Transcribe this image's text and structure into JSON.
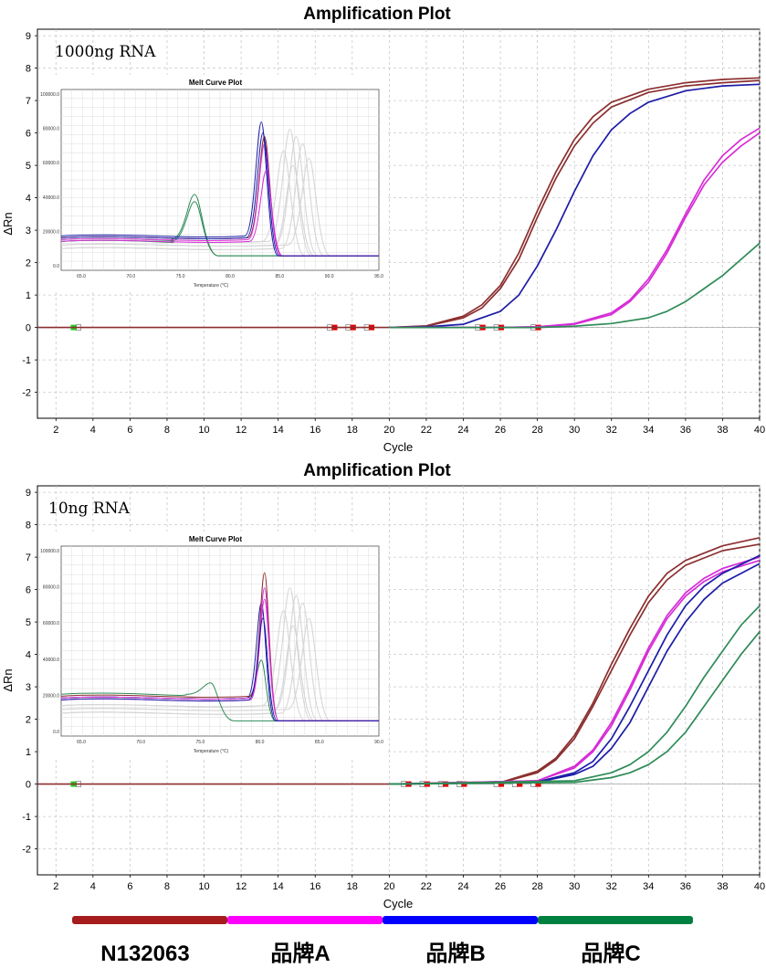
{
  "colors": {
    "n132063": "#8c2f2f",
    "brandA": "#d62dd6",
    "brandB": "#1c1ca8",
    "brandC": "#2e8b57",
    "legend_n132063": "#a61c1c",
    "legend_brandA": "#ff00ff",
    "legend_brandB": "#0000ff",
    "legend_brandC": "#008040"
  },
  "legend": {
    "items": [
      {
        "label": "N132063",
        "color": "#a61c1c"
      },
      {
        "label": "品牌A",
        "color": "#ff00ff"
      },
      {
        "label": "品牌B",
        "color": "#0000ff"
      },
      {
        "label": "品牌C",
        "color": "#008040"
      }
    ]
  },
  "chart_data": [
    {
      "type": "line",
      "title": "Amplification Plot",
      "annotation": "1000ng RNA",
      "xlabel": "Cycle",
      "ylabel": "ΔRn",
      "xlim": [
        1,
        40
      ],
      "ylim": [
        -2.8,
        9.2
      ],
      "xticks": [
        2,
        4,
        6,
        8,
        10,
        12,
        14,
        16,
        18,
        20,
        22,
        24,
        26,
        28,
        30,
        32,
        34,
        36,
        38,
        40
      ],
      "yticks": [
        -2,
        -1,
        0,
        1,
        2,
        3,
        4,
        5,
        6,
        7,
        8,
        9
      ],
      "grid": true,
      "series": [
        {
          "group": "N132063",
          "color": "#8c2f2f",
          "x": [
            20,
            22,
            24,
            25,
            26,
            27,
            28,
            29,
            30,
            31,
            32,
            34,
            36,
            38,
            40
          ],
          "y": [
            0.0,
            0.05,
            0.35,
            0.7,
            1.3,
            2.3,
            3.6,
            4.8,
            5.8,
            6.5,
            6.95,
            7.35,
            7.55,
            7.65,
            7.7
          ]
        },
        {
          "group": "N132063",
          "color": "#8c2f2f",
          "x": [
            20,
            22,
            24,
            25,
            26,
            27,
            28,
            29,
            30,
            31,
            32,
            34,
            36,
            38,
            40
          ],
          "y": [
            0.0,
            0.04,
            0.3,
            0.6,
            1.2,
            2.1,
            3.4,
            4.6,
            5.6,
            6.3,
            6.8,
            7.25,
            7.45,
            7.55,
            7.62
          ]
        },
        {
          "group": "品牌B",
          "color": "#1c1ca8",
          "x": [
            20,
            22,
            24,
            26,
            27,
            28,
            29,
            30,
            31,
            32,
            33,
            34,
            36,
            38,
            40
          ],
          "y": [
            0.0,
            0.02,
            0.1,
            0.5,
            1.0,
            1.9,
            3.0,
            4.2,
            5.3,
            6.1,
            6.6,
            6.95,
            7.3,
            7.45,
            7.5
          ]
        },
        {
          "group": "品牌A",
          "color": "#d62dd6",
          "x": [
            20,
            26,
            28,
            30,
            32,
            33,
            34,
            35,
            36,
            37,
            38,
            39,
            40
          ],
          "y": [
            0.0,
            0.0,
            0.02,
            0.1,
            0.4,
            0.8,
            1.4,
            2.3,
            3.4,
            4.4,
            5.1,
            5.6,
            6.0
          ]
        },
        {
          "group": "品牌A",
          "color": "#d62dd6",
          "x": [
            20,
            26,
            28,
            30,
            32,
            33,
            34,
            35,
            36,
            37,
            38,
            39,
            40
          ],
          "y": [
            0.0,
            0.0,
            0.02,
            0.12,
            0.45,
            0.85,
            1.5,
            2.4,
            3.5,
            4.55,
            5.3,
            5.8,
            6.15
          ]
        },
        {
          "group": "品牌C",
          "color": "#2e8b57",
          "x": [
            20,
            28,
            30,
            32,
            34,
            35,
            36,
            37,
            38,
            39,
            40
          ],
          "y": [
            0.0,
            0.0,
            0.04,
            0.12,
            0.3,
            0.5,
            0.8,
            1.2,
            1.6,
            2.1,
            2.6
          ]
        }
      ],
      "inset": {
        "title": "Melt Curve Plot",
        "xlabel": "Temperature (°C)",
        "xticks": [
          "65.0",
          "70.0",
          "75.0",
          "80.0",
          "85.0",
          "90.0",
          "95.0"
        ],
        "yticks": [
          "100000.0",
          "80000.0",
          "60000.0",
          "40000.0",
          "20000.0",
          "0.0"
        ]
      }
    },
    {
      "type": "line",
      "title": "Amplification Plot",
      "annotation": "10ng RNA",
      "xlabel": "Cycle",
      "ylabel": "ΔRn",
      "xlim": [
        1,
        40
      ],
      "ylim": [
        -2.8,
        9.2
      ],
      "xticks": [
        2,
        4,
        6,
        8,
        10,
        12,
        14,
        16,
        18,
        20,
        22,
        24,
        26,
        28,
        30,
        32,
        34,
        36,
        38,
        40
      ],
      "yticks": [
        -2,
        -1,
        0,
        1,
        2,
        3,
        4,
        5,
        6,
        7,
        8,
        9
      ],
      "grid": true,
      "series": [
        {
          "group": "N132063",
          "color": "#8c2f2f",
          "x": [
            20,
            26,
            28,
            29,
            30,
            31,
            32,
            33,
            34,
            35,
            36,
            38,
            40
          ],
          "y": [
            0.0,
            0.05,
            0.4,
            0.8,
            1.5,
            2.5,
            3.7,
            4.8,
            5.8,
            6.5,
            6.9,
            7.35,
            7.6
          ]
        },
        {
          "group": "N132063",
          "color": "#8c2f2f",
          "x": [
            20,
            26,
            28,
            29,
            30,
            31,
            32,
            33,
            34,
            35,
            36,
            38,
            40
          ],
          "y": [
            0.0,
            0.04,
            0.35,
            0.75,
            1.4,
            2.4,
            3.5,
            4.6,
            5.6,
            6.3,
            6.75,
            7.2,
            7.4
          ]
        },
        {
          "group": "品牌A",
          "color": "#d62dd6",
          "x": [
            20,
            28,
            30,
            31,
            32,
            33,
            34,
            35,
            36,
            37,
            38,
            40
          ],
          "y": [
            0.0,
            0.1,
            0.5,
            1.0,
            1.8,
            2.9,
            4.1,
            5.1,
            5.8,
            6.25,
            6.55,
            6.9
          ]
        },
        {
          "group": "品牌A",
          "color": "#d62dd6",
          "x": [
            20,
            28,
            30,
            31,
            32,
            33,
            34,
            35,
            36,
            37,
            38,
            40
          ],
          "y": [
            0.0,
            0.1,
            0.55,
            1.05,
            1.9,
            3.0,
            4.2,
            5.2,
            5.9,
            6.35,
            6.65,
            7.0
          ]
        },
        {
          "group": "品牌B",
          "color": "#1c1ca8",
          "x": [
            20,
            28,
            30,
            31,
            32,
            33,
            34,
            35,
            36,
            37,
            38,
            40
          ],
          "y": [
            0.0,
            0.06,
            0.3,
            0.55,
            1.1,
            1.9,
            3.0,
            4.1,
            5.0,
            5.7,
            6.2,
            6.8
          ]
        },
        {
          "group": "品牌B",
          "color": "#1c1ca8",
          "x": [
            20,
            28,
            30,
            31,
            32,
            33,
            34,
            35,
            36,
            37,
            38,
            40
          ],
          "y": [
            0.0,
            0.07,
            0.35,
            0.7,
            1.4,
            2.4,
            3.5,
            4.6,
            5.5,
            6.1,
            6.5,
            7.05
          ]
        },
        {
          "group": "品牌C",
          "color": "#2e8b57",
          "x": [
            20,
            30,
            32,
            33,
            34,
            35,
            36,
            37,
            38,
            39,
            40
          ],
          "y": [
            0.0,
            0.1,
            0.35,
            0.6,
            1.0,
            1.6,
            2.4,
            3.3,
            4.1,
            4.9,
            5.5
          ]
        },
        {
          "group": "品牌C",
          "color": "#2e8b57",
          "x": [
            20,
            30,
            32,
            33,
            34,
            35,
            36,
            37,
            38,
            39,
            40
          ],
          "y": [
            0.0,
            0.05,
            0.2,
            0.35,
            0.6,
            1.0,
            1.6,
            2.4,
            3.2,
            4.0,
            4.7
          ]
        }
      ],
      "inset": {
        "title": "Melt Curve Plot",
        "xlabel": "Temperature (°C)",
        "xticks": [
          "65.0",
          "70.0",
          "75.0",
          "80.0",
          "85.0",
          "90.0"
        ],
        "yticks": [
          "100000.0",
          "80000.0",
          "60000.0",
          "40000.0",
          "20000.0",
          "0.0"
        ]
      }
    }
  ]
}
